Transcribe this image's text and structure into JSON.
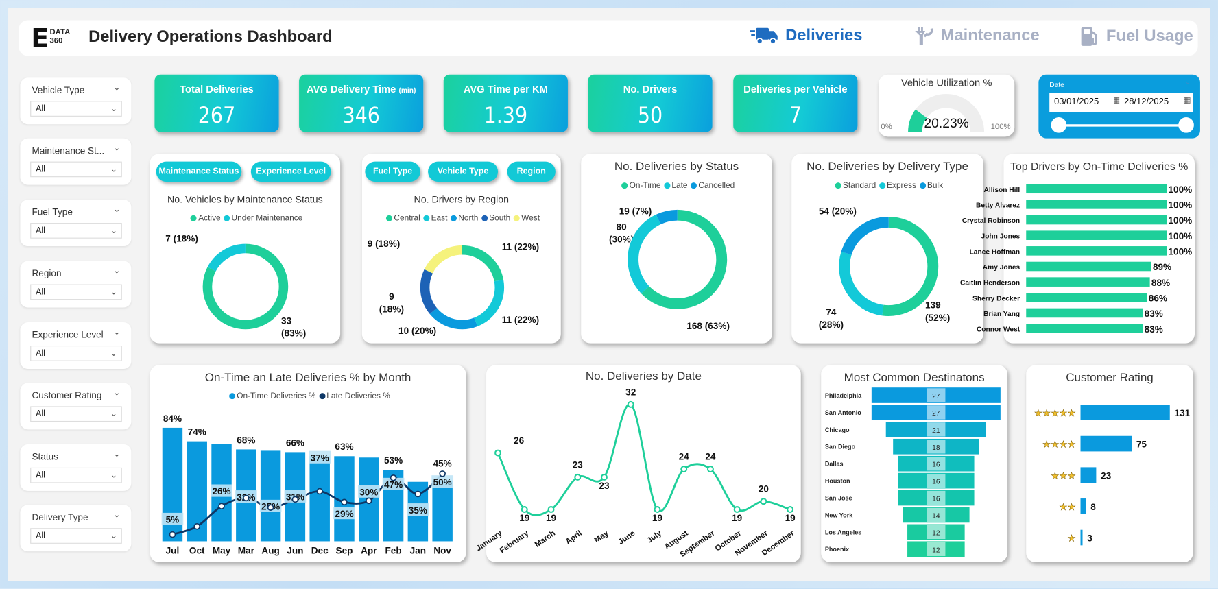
{
  "header": {
    "logo_letter": "E",
    "logo_text": "DATA 360",
    "title": "Delivery Operations Dashboard",
    "nav": [
      {
        "label": "Deliveries",
        "icon": "truck-icon",
        "active": true
      },
      {
        "label": "Maintenance",
        "icon": "wrench-icon",
        "active": false
      },
      {
        "label": "Fuel Usage",
        "icon": "fuel-pump-icon",
        "active": false
      }
    ]
  },
  "filters": [
    {
      "label": "Vehicle Type",
      "value": "All"
    },
    {
      "label": "Maintenance St...",
      "value": "All"
    },
    {
      "label": "Fuel Type",
      "value": "All"
    },
    {
      "label": "Region",
      "value": "All"
    },
    {
      "label": "Experience Level",
      "value": "All"
    },
    {
      "label": "Customer Rating",
      "value": "All"
    },
    {
      "label": "Status",
      "value": "All"
    },
    {
      "label": "Delivery Type",
      "value": "All"
    }
  ],
  "kpis": [
    {
      "label": "Total Deliveries",
      "unit": "",
      "value": "267"
    },
    {
      "label": "AVG Delivery Time",
      "unit": "(min)",
      "value": "346"
    },
    {
      "label": "AVG Time per KM",
      "unit": "",
      "value": "1.39"
    },
    {
      "label": "No. Drivers",
      "unit": "",
      "value": "50"
    },
    {
      "label": "Deliveries per Vehicle",
      "unit": "",
      "value": "7"
    }
  ],
  "utilization": {
    "title": "Vehicle Utilization %",
    "value": 20.23,
    "value_label": "20.23%",
    "min_label": "0%",
    "max_label": "100%"
  },
  "date_filter": {
    "label": "Date",
    "start": "03/01/2025",
    "end": "28/12/2025",
    "icon": "calendar-icon"
  },
  "toggle_buttons": {
    "vehicles": [
      "Maintenance Status",
      "Experience Level"
    ],
    "drivers": [
      "Fuel Type",
      "Vehicle Type",
      "Region"
    ]
  },
  "colors": {
    "green": "#1ecf9a",
    "cyan": "#13c9d8",
    "blue": "#0a9ade",
    "navy": "#0e3766",
    "dark_blue": "#1d62b6",
    "yellow": "#f5f27c",
    "nav_active": "#1f6cc0",
    "nav_inactive": "#a8b0c4",
    "star": "#f2c12e"
  },
  "chart_data": [
    {
      "type": "pie",
      "title": "No. Vehicles by Maintenance Status",
      "categories": [
        "Active",
        "Under Maintenance"
      ],
      "values": [
        33,
        7
      ],
      "labels": [
        "33 (83%)",
        "7 (18%)"
      ],
      "colors": [
        "#1ecf9a",
        "#13c9d8"
      ]
    },
    {
      "type": "pie",
      "title": "No. Drivers by Region",
      "categories": [
        "Central",
        "East",
        "North",
        "South",
        "West"
      ],
      "values": [
        11,
        11,
        10,
        9,
        9
      ],
      "labels": [
        "11 (22%)",
        "11 (22%)",
        "10 (20%)",
        "9 (18%)",
        "9 (18%)"
      ],
      "colors": [
        "#1ecf9a",
        "#13c9d8",
        "#0a9ade",
        "#1d62b6",
        "#f5f27c"
      ]
    },
    {
      "type": "pie",
      "title": "No. Deliveries by Status",
      "categories": [
        "On-Time",
        "Late",
        "Cancelled"
      ],
      "values": [
        168,
        80,
        19
      ],
      "labels": [
        "168 (63%)",
        "80 (30%)",
        "19 (7%)"
      ],
      "colors": [
        "#1ecf9a",
        "#13c9d8",
        "#0a9ade"
      ]
    },
    {
      "type": "pie",
      "title": "No. Deliveries by Delivery Type",
      "categories": [
        "Standard",
        "Express",
        "Bulk"
      ],
      "values": [
        139,
        74,
        54
      ],
      "labels": [
        "139 (52%)",
        "74 (28%)",
        "54 (20%)"
      ],
      "colors": [
        "#1ecf9a",
        "#13c9d8",
        "#0a9ade"
      ]
    },
    {
      "type": "bar",
      "title": "Top Drivers by On-Time Deliveries %",
      "categories": [
        "Allison Hill",
        "Betty Alvarez",
        "Crystal Robinson",
        "John Jones",
        "Lance Hoffman",
        "Amy Jones",
        "Caitlin Henderson",
        "Sherry Decker",
        "Brian Yang",
        "Connor West"
      ],
      "values": [
        100,
        100,
        100,
        100,
        100,
        89,
        88,
        86,
        83,
        83
      ],
      "labels": [
        "100%",
        "100%",
        "100%",
        "100%",
        "100%",
        "89%",
        "88%",
        "86%",
        "83%",
        "83%"
      ],
      "color": "#1ecf9a"
    },
    {
      "type": "bar",
      "title": "On-Time an Late Deliveries % by Month",
      "categories": [
        "Jul",
        "Oct",
        "May",
        "Mar",
        "Aug",
        "Jun",
        "Dec",
        "Sep",
        "Apr",
        "Feb",
        "Jan",
        "Nov"
      ],
      "series": [
        {
          "name": "On-Time Deliveries %",
          "type": "bar",
          "values": [
            84,
            74,
            72,
            68,
            67,
            66,
            63,
            63,
            62,
            53,
            44,
            45
          ],
          "color": "#0a9ade"
        },
        {
          "name": "Late Deliveries %",
          "type": "line",
          "values": [
            5,
            11,
            26,
            32,
            25,
            31,
            37,
            29,
            30,
            47,
            35,
            50
          ],
          "color": "#0e3766"
        }
      ],
      "ontime_labels": [
        "84%",
        "74%",
        "68%",
        "66%",
        "63%",
        "53%",
        "45%"
      ],
      "late_labels": [
        "5%",
        "26%",
        "32%",
        "25%",
        "31%",
        "37%",
        "29%",
        "30%",
        "47%",
        "35%",
        "50%"
      ]
    },
    {
      "type": "line",
      "title": "No. Deliveries by Date",
      "categories": [
        "January",
        "February",
        "March",
        "April",
        "May",
        "June",
        "July",
        "August",
        "September",
        "October",
        "November",
        "December"
      ],
      "values": [
        26,
        19,
        19,
        23,
        23,
        32,
        19,
        24,
        24,
        19,
        20,
        19
      ],
      "color": "#1ecf9a"
    },
    {
      "type": "bar",
      "subtype": "funnel",
      "title": "Most Common Destinatons",
      "categories": [
        "Philadelphia",
        "San Antonio",
        "Chicago",
        "San Diego",
        "Dallas",
        "Houston",
        "San Jose",
        "New York",
        "Los Angeles",
        "Phoenix"
      ],
      "values": [
        27,
        27,
        21,
        18,
        16,
        16,
        16,
        14,
        12,
        12
      ]
    },
    {
      "type": "bar",
      "title": "Customer Rating",
      "categories": [
        "★★★★★",
        "★★★★",
        "★★★",
        "★★",
        "★"
      ],
      "values": [
        131,
        75,
        23,
        8,
        3
      ],
      "color": "#0a9ade"
    }
  ]
}
